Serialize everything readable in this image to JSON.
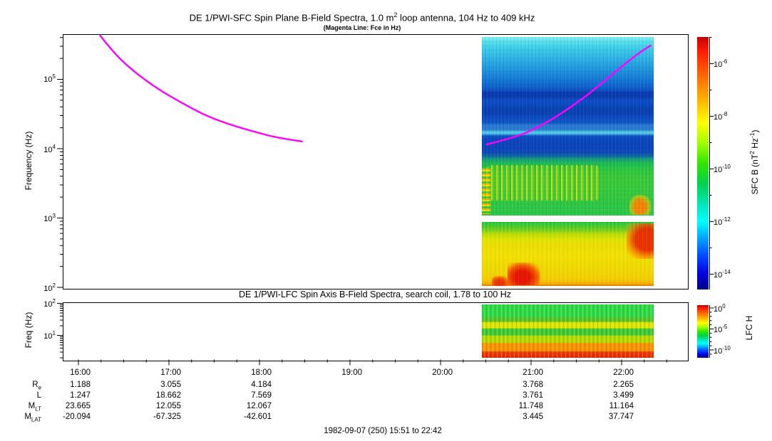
{
  "figure": {
    "title_pre": "DE 1/PWI-SFC  Spin Plane B-Field Spectra, 1.0 m",
    "title_sup": "2",
    "title_post": " loop antenna, 104 Hz to 409 kHz",
    "subtitle": "(Magenta Line: Fce in Hz)"
  },
  "sfc_panel": {
    "ylabel": "Frequency (Hz)",
    "yticks": [
      {
        "base": "10",
        "exp": "5"
      },
      {
        "base": "10",
        "exp": "4"
      },
      {
        "base": "10",
        "exp": "3"
      },
      {
        "base": "10",
        "exp": "2"
      }
    ]
  },
  "lfc_panel": {
    "title": "DE 1/PWI-LFC  Spin Axis B-Field Spectra, search coil, 1.78 to 100 Hz",
    "ylabel": "Freq (Hz)",
    "yticks": [
      {
        "base": "10",
        "exp": "2"
      },
      {
        "base": "10",
        "exp": "1"
      }
    ]
  },
  "sfc_colorbar": {
    "label_p1": "SFC B (nT",
    "label_s1": "2",
    "label_p2": " Hz",
    "label_s2": "-1",
    "label_p3": ")",
    "ticks": [
      {
        "base": "10",
        "exp": "-6"
      },
      {
        "base": "10",
        "exp": "-8"
      },
      {
        "base": "10",
        "exp": "-10"
      },
      {
        "base": "10",
        "exp": "-12"
      },
      {
        "base": "10",
        "exp": "-14"
      }
    ]
  },
  "lfc_colorbar": {
    "label": "LFC H",
    "ticks": [
      {
        "base": "10",
        "exp": "0"
      },
      {
        "base": "10",
        "exp": "-5"
      },
      {
        "base": "10",
        "exp": "-10"
      }
    ]
  },
  "xaxis": {
    "times": [
      "16:00",
      "17:00",
      "18:00",
      "19:00",
      "20:00",
      "21:00",
      "22:00"
    ]
  },
  "ephemeris": {
    "rows": [
      {
        "label_main": "R",
        "label_sub": "e",
        "values": [
          "1.188",
          "3.055",
          "4.184",
          "",
          "",
          "3.768",
          "2.265"
        ]
      },
      {
        "label_main": "L",
        "label_sub": "",
        "values": [
          "1.247",
          "18.662",
          "7.569",
          "",
          "",
          "3.761",
          "3.499"
        ]
      },
      {
        "label_main": "M",
        "label_sub": "LT",
        "values": [
          "23.665",
          "12.055",
          "12.067",
          "",
          "",
          "11.748",
          "11.164"
        ]
      },
      {
        "label_main": "M",
        "label_sub": "LAT",
        "values": [
          "-20.094",
          "-67.325",
          "-42.601",
          "",
          "",
          "3.445",
          "37.747"
        ]
      }
    ]
  },
  "footer": {
    "date_line": "1982-09-07 (250) 15:51 to 22:42"
  },
  "chart_data": [
    {
      "type": "heatmap",
      "title": "DE 1/PWI-SFC Spin Plane B-Field Spectra, 1.0 m2 loop antenna, 104 Hz to 409 kHz",
      "subtitle": "(Magenta Line: Fce in Hz)",
      "xlabel": "UT on 1982-09-07 (day 250), 15:51 to 22:42",
      "x_tick_labels": [
        "16:00",
        "17:00",
        "18:00",
        "19:00",
        "20:00",
        "21:00",
        "22:00"
      ],
      "ylabel": "Frequency (Hz)",
      "y_scale": "log",
      "y_range_hz": [
        100,
        409000
      ],
      "colorbar": {
        "label": "SFC B (nT2 Hz-1)",
        "scale": "log",
        "range": [
          3e-15,
          1e-05
        ],
        "labeled_ticks": [
          1e-06,
          1e-08,
          1e-10,
          1e-12,
          1e-14
        ],
        "colormap": "rainbow (red=high, dark blue=low)"
      },
      "data_coverage": {
        "spectrogram_start": "20:27",
        "spectrogram_end": "22:21",
        "note": "No spectrogram data before ~20:27; two receiver bands separated by a white gap near 0.9-1.1 kHz"
      },
      "features": [
        "Upper band (~1.1 kHz-409 kHz): cyan at top fading to deep blue 20-100 kHz with darker horizontal bands near 30-40 kHz and a thin cyan lane near 14 kHz",
        "Blue-to-green transition near 3-5 kHz; green with yellow burst streaks 1.5-3 kHz (strongest 20:30-21:30)",
        "Orange/red patch at bottom right of upper band near 22:10-22:20",
        "Lower band (~100-900 Hz): green top edge, mostly yellow; deep red blob ~200-130 Hz around 20:55-21:10; red patch at 600-900 Hz near 22:10-22:20"
      ],
      "fce_line": {
        "label": "Fce in Hz",
        "color": "#ff00ff",
        "segments_th_hz": [
          [
            [
              16.24,
              428000
            ],
            [
              16.38,
              248000
            ],
            [
              16.59,
              137000
            ],
            [
              16.85,
              76000
            ],
            [
              17.12,
              47500
            ],
            [
              17.38,
              31000
            ],
            [
              17.64,
              22900
            ],
            [
              17.91,
              18000
            ],
            [
              18.17,
              14600
            ],
            [
              18.47,
              12700
            ]
          ],
          [
            [
              20.51,
              11500
            ],
            [
              20.86,
              14900
            ],
            [
              21.12,
              21800
            ],
            [
              21.38,
              35000
            ],
            [
              21.65,
              63000
            ],
            [
              21.91,
              122000
            ],
            [
              22.17,
              230000
            ],
            [
              22.32,
              307000
            ]
          ]
        ]
      }
    },
    {
      "type": "heatmap",
      "title": "DE 1/PWI-LFC Spin Axis B-Field Spectra, search coil, 1.78 to 100 Hz",
      "ylabel": "Freq (Hz)",
      "y_scale": "log",
      "y_range_hz": [
        1.78,
        100
      ],
      "colorbar": {
        "label": "LFC H",
        "scale": "log",
        "range": [
          1e-12,
          10
        ],
        "labeled_ticks": [
          1,
          1e-05,
          1e-10
        ],
        "colormap": "rainbow (red=high, dark blue=low)"
      },
      "data_coverage": {
        "spectrogram_start": "20:27",
        "spectrogram_end": "22:21"
      },
      "bands_top_to_bottom": [
        {
          "freq_hz": "35-100",
          "color": "green"
        },
        {
          "freq_hz": "25-35",
          "color": "dark green / yellow striped"
        },
        {
          "freq_hz": "15-25",
          "color": "yellow"
        },
        {
          "freq_hz": "9-15",
          "color": "green striped"
        },
        {
          "freq_hz": "5-9",
          "color": "yellow-green striped"
        },
        {
          "freq_hz": "3-5",
          "color": "orange"
        },
        {
          "freq_hz": "1.78-3",
          "color": "red"
        }
      ]
    },
    {
      "type": "table",
      "title": "orbit ephemeris vs UT",
      "columns": [
        "16:00",
        "17:00",
        "18:00",
        "19:00",
        "20:00",
        "21:00",
        "22:00"
      ],
      "row_labels": [
        "Re",
        "L",
        "MLT",
        "MLAT"
      ],
      "rows": [
        [
          1.188,
          3.055,
          4.184,
          null,
          null,
          3.768,
          2.265
        ],
        [
          1.247,
          18.662,
          7.569,
          null,
          null,
          3.761,
          3.499
        ],
        [
          23.665,
          12.055,
          12.067,
          null,
          null,
          11.748,
          11.164
        ],
        [
          -20.094,
          -67.325,
          -42.601,
          null,
          null,
          3.445,
          37.747
        ]
      ]
    }
  ]
}
